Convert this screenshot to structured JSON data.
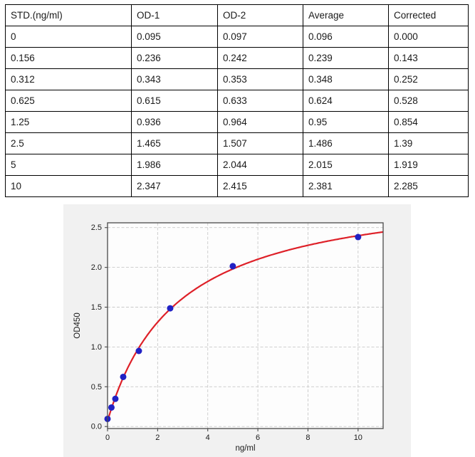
{
  "table": {
    "headers": [
      "STD.(ng/ml)",
      "OD-1",
      "OD-2",
      "Average",
      "Corrected"
    ],
    "rows": [
      [
        "0",
        "0.095",
        "0.097",
        "0.096",
        "0.000"
      ],
      [
        "0.156",
        "0.236",
        "0.242",
        "0.239",
        "0.143"
      ],
      [
        "0.312",
        "0.343",
        "0.353",
        "0.348",
        "0.252"
      ],
      [
        "0.625",
        "0.615",
        "0.633",
        "0.624",
        "0.528"
      ],
      [
        "1.25",
        "0.936",
        "0.964",
        "0.95",
        "0.854"
      ],
      [
        "2.5",
        "1.465",
        "1.507",
        "1.486",
        "1.39"
      ],
      [
        "5",
        "1.986",
        "2.044",
        "2.015",
        "1.919"
      ],
      [
        "10",
        "2.347",
        "2.415",
        "2.381",
        "2.285"
      ]
    ]
  },
  "chart_data": {
    "type": "scatter",
    "title": "",
    "xlabel": "ng/ml",
    "ylabel": "OD450",
    "x": [
      0,
      0.156,
      0.312,
      0.625,
      1.25,
      2.5,
      5,
      10
    ],
    "y": [
      0.096,
      0.239,
      0.348,
      0.624,
      0.95,
      1.486,
      2.015,
      2.381
    ],
    "fit_curve": {
      "model": "4PL",
      "a": 0.07,
      "b": 1.0,
      "c": 2.8,
      "d": 3.05
    },
    "xlim": [
      0,
      11
    ],
    "ylim": [
      -0.025,
      2.56
    ],
    "xticks": [
      0,
      2,
      4,
      6,
      8,
      10
    ],
    "xtick_labels": [
      "0",
      "2",
      "4",
      "6",
      "8",
      "10"
    ],
    "yticks": [
      0,
      0.5,
      1.0,
      1.5,
      2.0,
      2.5
    ],
    "ytick_labels": [
      "0.0",
      "0.5",
      "1.0",
      "1.5",
      "2.0",
      "2.5"
    ],
    "grid": true,
    "legend": "none",
    "colors": {
      "marker": "#2121c4",
      "line": "#de2028",
      "grid": "#c9c9c9",
      "spine": "#4a4a4a",
      "tick_text": "#1a1a1a",
      "figure_bg": "#f1f1f1",
      "plot_bg": "#fdfdfd"
    }
  }
}
